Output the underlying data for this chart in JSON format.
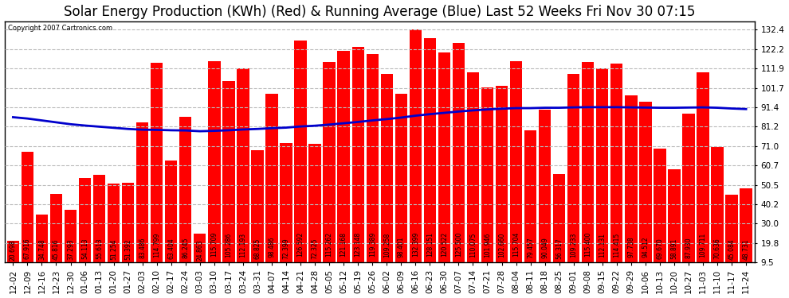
{
  "title": "Solar Energy Production (KWh) (Red) & Running Average (Blue) Last 52 Weeks Fri Nov 30 07:15",
  "copyright": "Copyright 2007 Cartronics.com",
  "bar_color": "#ff0000",
  "line_color": "#0000cc",
  "bg_color": "#ffffff",
  "grid_color": "#bbbbbb",
  "yticks": [
    9.5,
    19.8,
    30.0,
    40.2,
    50.5,
    60.7,
    71.0,
    81.2,
    91.4,
    101.7,
    111.9,
    122.2,
    132.4
  ],
  "categories": [
    "12-02",
    "12-09",
    "12-16",
    "12-23",
    "12-30",
    "01-06",
    "01-13",
    "01-20",
    "01-27",
    "02-03",
    "02-10",
    "02-17",
    "02-24",
    "03-03",
    "03-10",
    "03-17",
    "03-24",
    "03-31",
    "04-07",
    "04-14",
    "04-21",
    "04-28",
    "05-05",
    "05-12",
    "05-19",
    "05-26",
    "06-02",
    "06-09",
    "06-16",
    "06-23",
    "06-30",
    "07-07",
    "07-14",
    "07-21",
    "07-28",
    "08-04",
    "08-11",
    "08-18",
    "08-25",
    "09-01",
    "09-08",
    "09-15",
    "09-22",
    "09-29",
    "10-06",
    "10-13",
    "10-20",
    "10-27",
    "11-03",
    "11-10",
    "11-17",
    "11-24"
  ],
  "values": [
    20.698,
    67.916,
    34.748,
    45.816,
    37.293,
    54.113,
    55.613,
    51.254,
    51.392,
    83.486,
    114.799,
    63.404,
    86.245,
    24.863,
    115.709,
    105.286,
    112.193,
    68.825,
    98.486,
    72.399,
    126.592,
    72.325,
    115.262,
    121.168,
    123.148,
    119.389,
    109.258,
    98.401,
    132.399,
    128.151,
    120.522,
    125.5,
    110.075,
    101.946,
    102.66,
    115.704,
    79.457,
    90.049,
    56.317,
    109.233,
    115.4,
    112.131,
    114.415,
    97.738,
    94.512,
    69.67,
    58.891,
    87.93,
    109.711,
    70.636,
    45.084,
    48.731
  ],
  "running_avg": [
    86.2,
    85.5,
    84.5,
    83.5,
    82.5,
    81.8,
    81.2,
    80.6,
    80.0,
    79.6,
    79.5,
    79.3,
    79.2,
    78.8,
    79.0,
    79.3,
    79.7,
    80.0,
    80.4,
    80.7,
    81.3,
    81.7,
    82.3,
    83.0,
    83.7,
    84.5,
    85.2,
    86.0,
    87.0,
    87.8,
    88.5,
    89.2,
    89.8,
    90.3,
    90.7,
    91.0,
    91.0,
    91.2,
    91.2,
    91.4,
    91.5,
    91.5,
    91.5,
    91.4,
    91.3,
    91.2,
    91.2,
    91.3,
    91.4,
    91.2,
    90.8,
    90.5
  ],
  "ylim_min": 9.5,
  "ylim_max": 137.0,
  "title_fontsize": 12,
  "tick_fontsize": 7.5,
  "label_fontsize": 5.5
}
